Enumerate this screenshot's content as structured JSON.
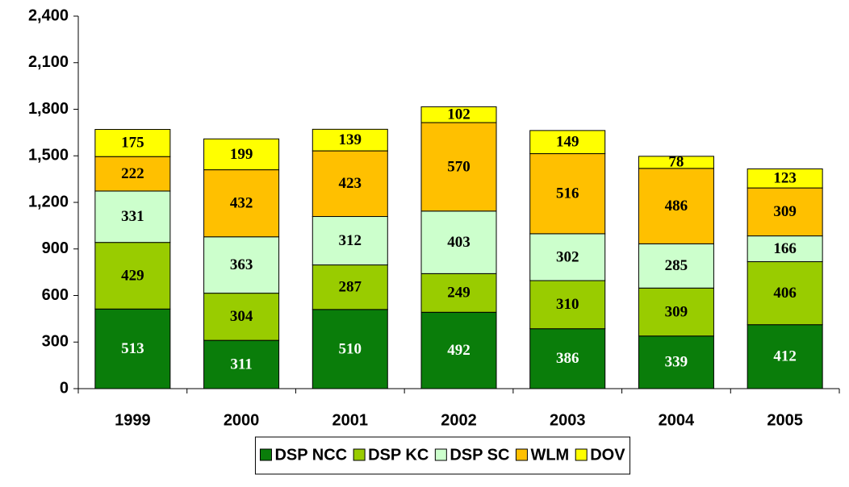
{
  "chart_data": {
    "type": "stacked_bar",
    "categories": [
      "1999",
      "2000",
      "2001",
      "2002",
      "2003",
      "2004",
      "2005"
    ],
    "series": [
      {
        "name": "DSP NCC",
        "color": "#0a7d0a",
        "values": [
          513,
          311,
          510,
          492,
          386,
          339,
          412
        ]
      },
      {
        "name": "DSP KC",
        "color": "#99cc00",
        "values": [
          429,
          304,
          287,
          249,
          310,
          309,
          406
        ]
      },
      {
        "name": "DSP SC",
        "color": "#ccffcc",
        "values": [
          331,
          363,
          312,
          403,
          302,
          285,
          166
        ]
      },
      {
        "name": "WLM",
        "color": "#ffc000",
        "values": [
          222,
          432,
          423,
          570,
          516,
          486,
          309
        ]
      },
      {
        "name": "DOV",
        "color": "#ffff00",
        "values": [
          175,
          199,
          139,
          102,
          149,
          78,
          123
        ]
      }
    ],
    "ylim": [
      0,
      2400
    ],
    "yticks": [
      0,
      300,
      600,
      900,
      {
        "value": 1200,
        "label": "1,200"
      },
      {
        "value": 1500,
        "label": "1,500"
      },
      {
        "value": 1800,
        "label": "1,800"
      },
      {
        "value": 2100,
        "label": "2,100"
      },
      {
        "value": 2400,
        "label": "2,400"
      }
    ],
    "legend": "bottom"
  }
}
